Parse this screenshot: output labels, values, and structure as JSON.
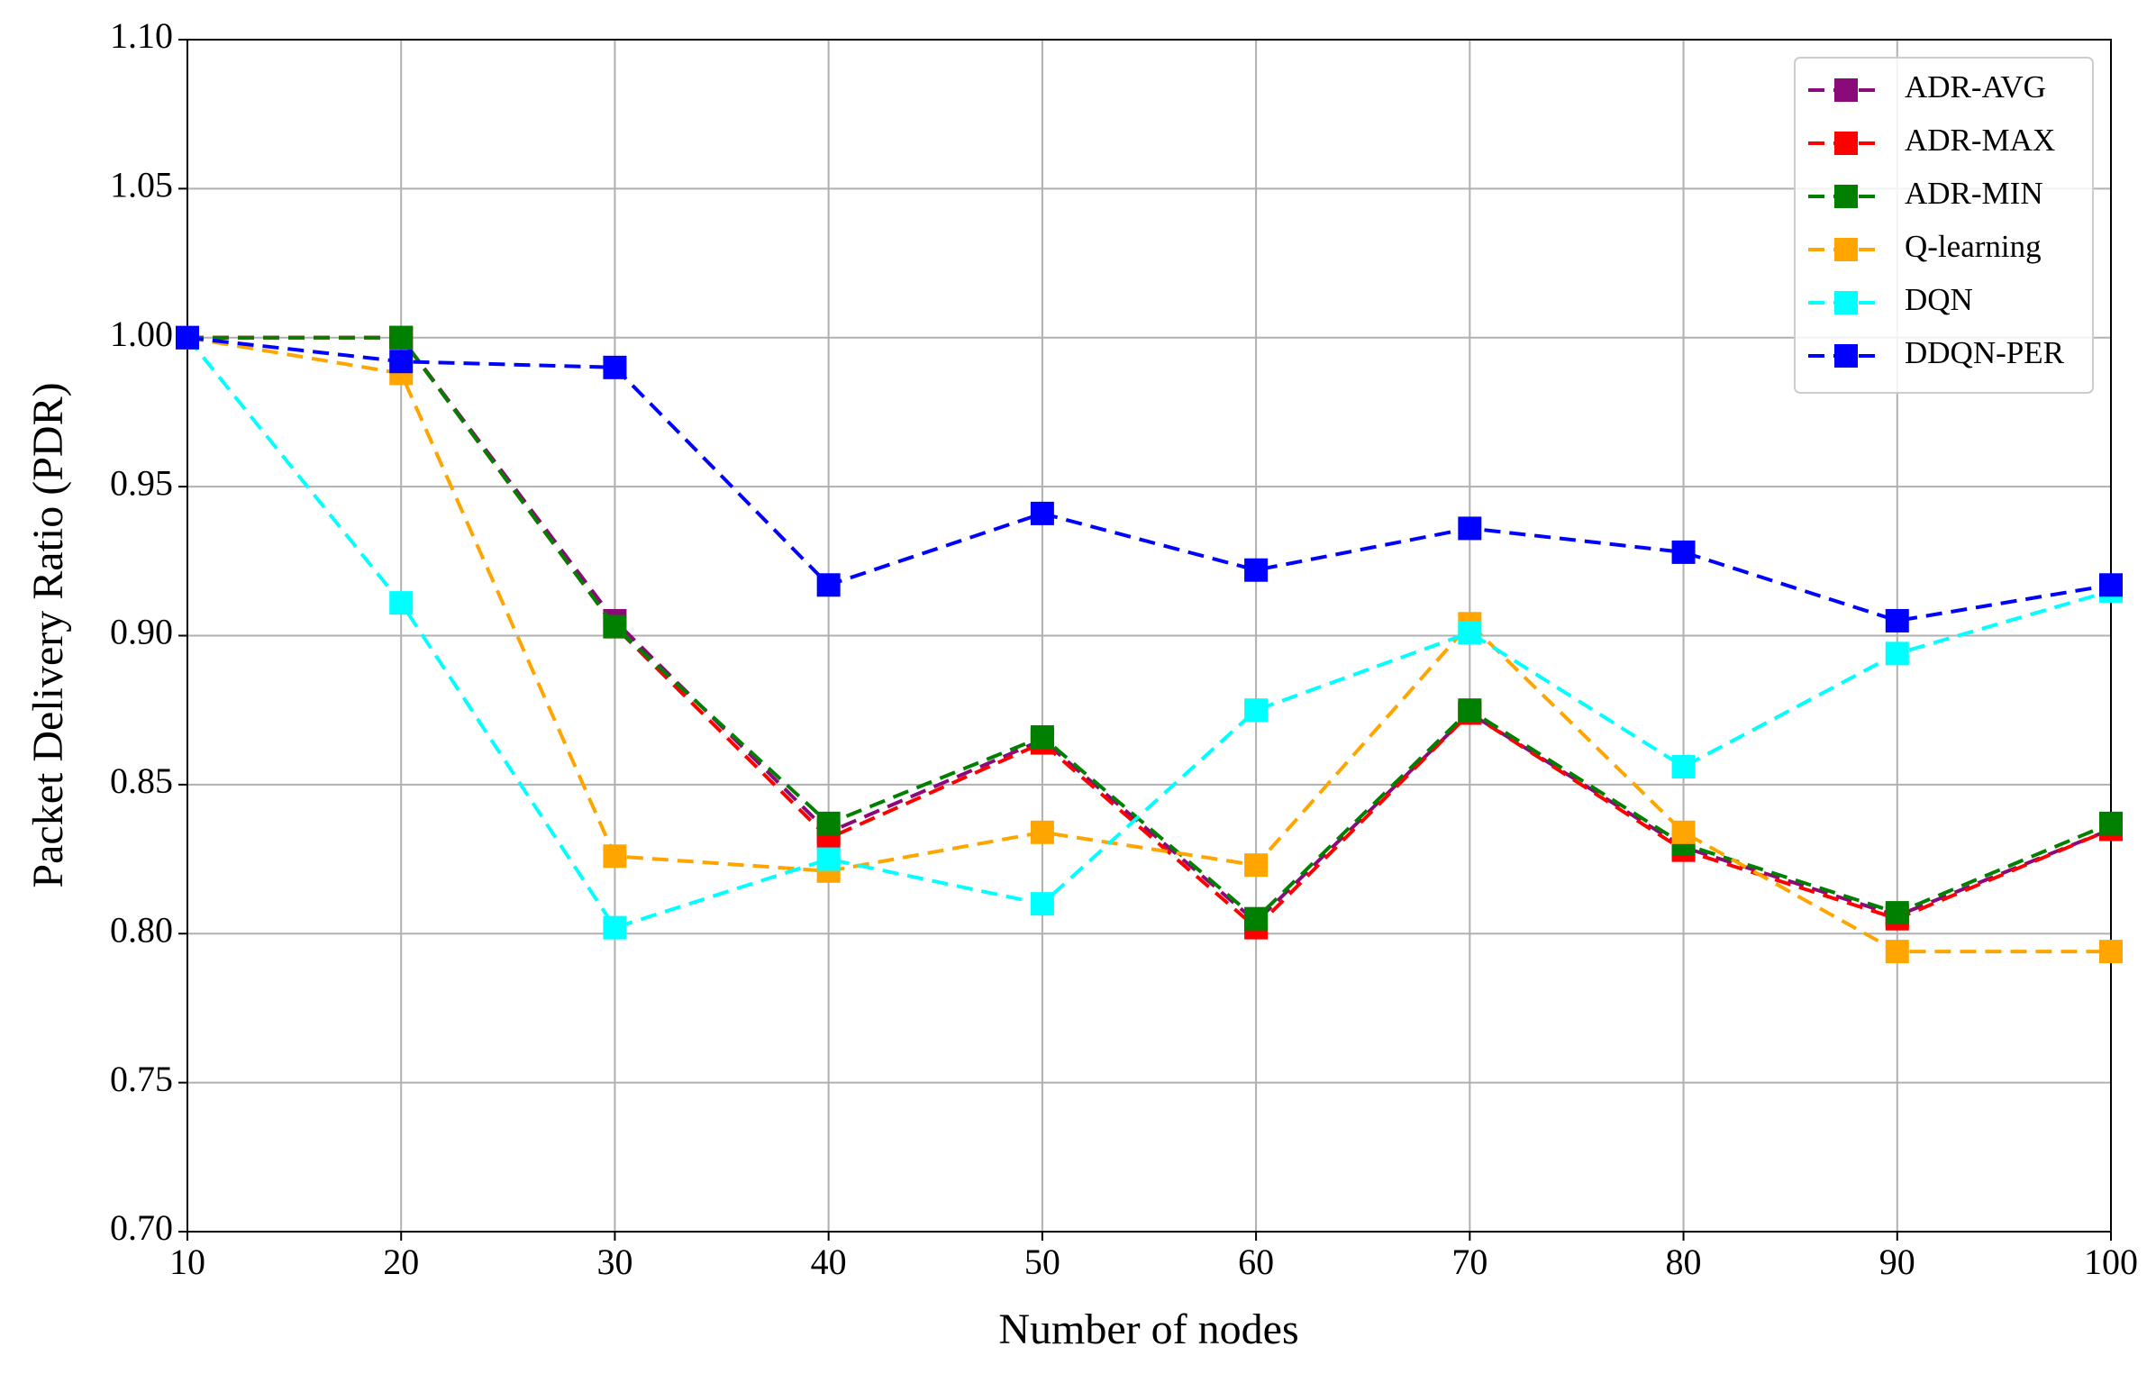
{
  "chart_data": {
    "type": "line",
    "x_label": "Number of nodes",
    "y_label": "Packet Delivery Ratio (PDR)",
    "x": [
      10,
      20,
      30,
      40,
      50,
      60,
      70,
      80,
      90,
      100
    ],
    "xlim": [
      10,
      100
    ],
    "xticks": [
      10,
      20,
      30,
      40,
      50,
      60,
      70,
      80,
      90,
      100
    ],
    "ylim": [
      0.7,
      1.1
    ],
    "yticks": [
      {
        "value": 0.7,
        "label": "0.70"
      },
      {
        "value": 0.75,
        "label": "0.75"
      },
      {
        "value": 0.8,
        "label": "0.80"
      },
      {
        "value": 0.85,
        "label": "0.85"
      },
      {
        "value": 0.9,
        "label": "0.90"
      },
      {
        "value": 0.95,
        "label": "0.95"
      },
      {
        "value": 1.0,
        "label": "1.00"
      },
      {
        "value": 1.05,
        "label": "1.05"
      },
      {
        "value": 1.1,
        "label": "1.10"
      }
    ],
    "grid": true,
    "legend": "upper right",
    "series": [
      {
        "name": "ADR-AVG",
        "color": "#8b0a7a",
        "values": [
          1.0,
          1.0,
          0.905,
          0.834,
          0.865,
          0.804,
          0.874,
          0.829,
          0.806,
          0.835
        ]
      },
      {
        "name": "ADR-MAX",
        "color": "#ff0000",
        "values": [
          1.0,
          1.0,
          0.903,
          0.832,
          0.864,
          0.802,
          0.874,
          0.828,
          0.805,
          0.835
        ]
      },
      {
        "name": "ADR-MIN",
        "color": "#008000",
        "values": [
          1.0,
          1.0,
          0.903,
          0.837,
          0.866,
          0.805,
          0.875,
          0.83,
          0.807,
          0.837
        ]
      },
      {
        "name": "Q-learning",
        "color": "#ffa500",
        "values": [
          1.0,
          0.988,
          0.826,
          0.821,
          0.834,
          0.823,
          0.904,
          0.834,
          0.794,
          0.794
        ]
      },
      {
        "name": "DQN",
        "color": "#00ffff",
        "values": [
          1.0,
          0.911,
          0.802,
          0.825,
          0.81,
          0.875,
          0.901,
          0.856,
          0.894,
          0.915
        ]
      },
      {
        "name": "DDQN-PER",
        "color": "#0000ff",
        "values": [
          1.0,
          0.992,
          0.99,
          0.917,
          0.941,
          0.922,
          0.936,
          0.928,
          0.905,
          0.917
        ]
      }
    ]
  }
}
